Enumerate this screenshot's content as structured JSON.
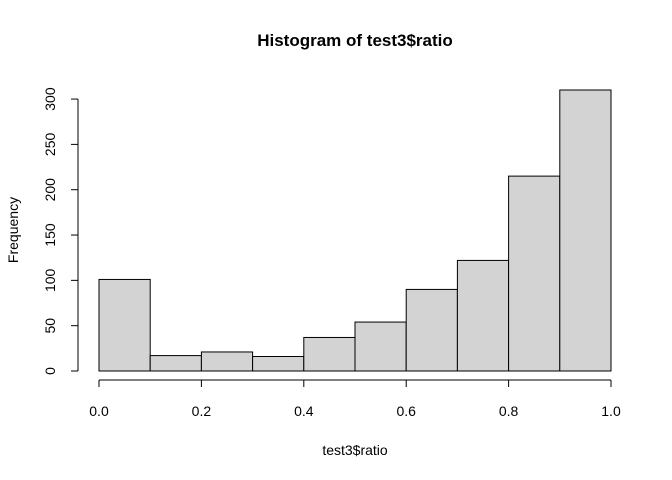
{
  "chart_data": {
    "type": "bar",
    "title": "Histogram of test3$ratio",
    "xlabel": "test3$ratio",
    "ylabel": "Frequency",
    "bins": [
      {
        "start": 0.0,
        "end": 0.1,
        "count": 101
      },
      {
        "start": 0.1,
        "end": 0.2,
        "count": 17
      },
      {
        "start": 0.2,
        "end": 0.3,
        "count": 21
      },
      {
        "start": 0.3,
        "end": 0.4,
        "count": 16
      },
      {
        "start": 0.4,
        "end": 0.5,
        "count": 37
      },
      {
        "start": 0.5,
        "end": 0.6,
        "count": 54
      },
      {
        "start": 0.6,
        "end": 0.7,
        "count": 90
      },
      {
        "start": 0.7,
        "end": 0.8,
        "count": 122
      },
      {
        "start": 0.8,
        "end": 0.9,
        "count": 215
      },
      {
        "start": 0.9,
        "end": 1.0,
        "count": 310
      }
    ],
    "xlim": [
      0,
      1
    ],
    "ylim": [
      0,
      310
    ],
    "x_ticks": [
      "0.0",
      "0.2",
      "0.4",
      "0.6",
      "0.8",
      "1.0"
    ],
    "y_ticks": [
      "0",
      "50",
      "100",
      "150",
      "200",
      "250",
      "300"
    ],
    "grid": false,
    "colors": {
      "bar_fill": "#d3d3d3",
      "bar_stroke": "#000000"
    }
  }
}
